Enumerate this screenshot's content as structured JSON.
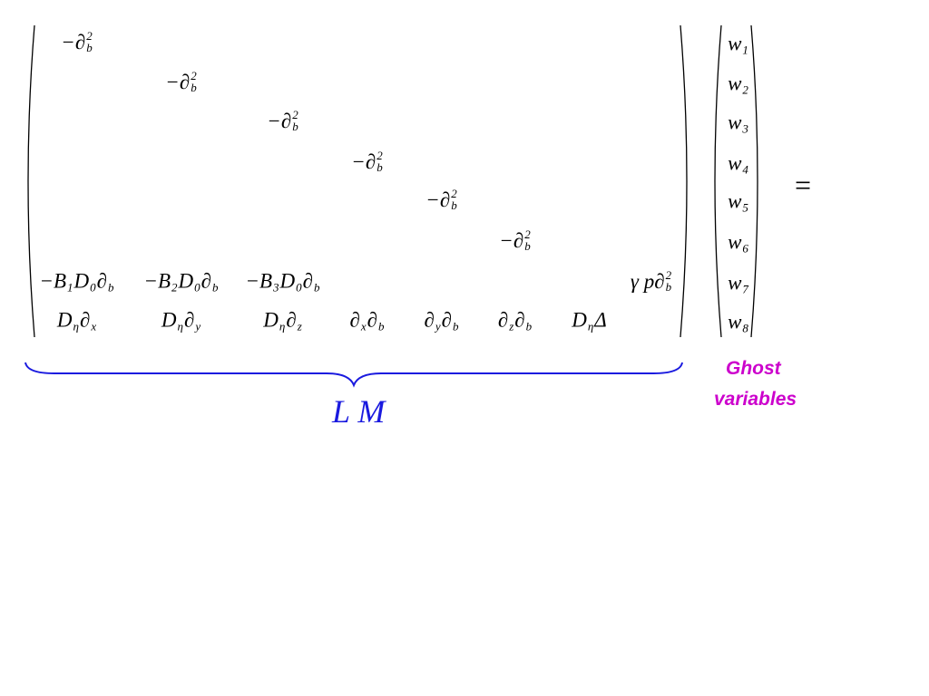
{
  "matrix": {
    "rows": [
      [
        [
          {
            "text": "−∂",
            "sub": "b",
            "sup": "2"
          }
        ],
        null,
        null,
        null,
        null,
        null,
        null,
        null
      ],
      [
        null,
        [
          {
            "text": "−∂",
            "sub": "b",
            "sup": "2"
          }
        ],
        null,
        null,
        null,
        null,
        null,
        null
      ],
      [
        null,
        null,
        [
          {
            "text": "−∂",
            "sub": "b",
            "sup": "2"
          }
        ],
        null,
        null,
        null,
        null,
        null
      ],
      [
        null,
        null,
        null,
        [
          {
            "text": "−∂",
            "sub": "b",
            "sup": "2"
          }
        ],
        null,
        null,
        null,
        null
      ],
      [
        null,
        null,
        null,
        null,
        [
          {
            "text": "−∂",
            "sub": "b",
            "sup": "2"
          }
        ],
        null,
        null,
        null
      ],
      [
        null,
        null,
        null,
        null,
        null,
        [
          {
            "text": "−∂",
            "sub": "b",
            "sup": "2"
          }
        ],
        null,
        null
      ],
      [
        [
          {
            "text": "−B",
            "sub": "1"
          },
          {
            "text": "D",
            "sub": "0"
          },
          {
            "text": "∂",
            "sub": "b"
          }
        ],
        [
          {
            "text": "−B",
            "sub": "2"
          },
          {
            "text": "D",
            "sub": "0"
          },
          {
            "text": "∂",
            "sub": "b"
          }
        ],
        [
          {
            "text": "−B",
            "sub": "3"
          },
          {
            "text": "D",
            "sub": "0"
          },
          {
            "text": "∂",
            "sub": "b"
          }
        ],
        null,
        null,
        null,
        null,
        [
          {
            "text": "γ p∂",
            "sub": "b",
            "sup": "2"
          }
        ]
      ],
      [
        [
          {
            "text": "D",
            "sub": "η"
          },
          {
            "text": "∂",
            "sub": "x"
          }
        ],
        [
          {
            "text": "D",
            "sub": "η"
          },
          {
            "text": "∂",
            "sub": "y"
          }
        ],
        [
          {
            "text": "D",
            "sub": "η"
          },
          {
            "text": "∂",
            "sub": "z"
          }
        ],
        [
          {
            "text": "∂",
            "sub": "x"
          },
          {
            "text": "∂",
            "sub": "b"
          }
        ],
        [
          {
            "text": "∂",
            "sub": "y"
          },
          {
            "text": "∂",
            "sub": "b"
          }
        ],
        [
          {
            "text": "∂",
            "sub": "z"
          },
          {
            "text": "∂",
            "sub": "b"
          }
        ],
        [
          {
            "text": "D",
            "sub": "η"
          },
          {
            "text": "Δ"
          }
        ],
        null
      ]
    ]
  },
  "vector": [
    {
      "text": "w",
      "sub": "1"
    },
    {
      "text": "w",
      "sub": "2"
    },
    {
      "text": "w",
      "sub": "3"
    },
    {
      "text": "w",
      "sub": "4"
    },
    {
      "text": "w",
      "sub": "5"
    },
    {
      "text": "w",
      "sub": "6"
    },
    {
      "text": "w",
      "sub": "7"
    },
    {
      "text": "w",
      "sub": "8"
    }
  ],
  "equals": "=",
  "brace_label": "L M",
  "annotation": [
    "Ghost",
    "variables"
  ]
}
